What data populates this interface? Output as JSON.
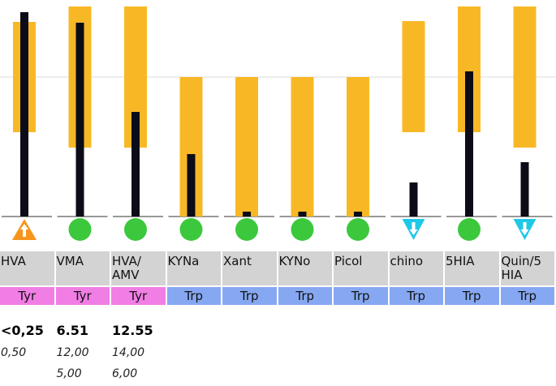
{
  "columns": [
    {
      "label": "HVA",
      "group": "Tyr",
      "value": "<0,25",
      "ref_high": "0,50"
    },
    {
      "label": "VMA",
      "group": "Tyr",
      "value": "6.51",
      "ref_high": "12,00",
      "ref_low": "5,00"
    },
    {
      "label": "HVA/\nAMV",
      "group": "Tyr",
      "value": "12.55",
      "ref_high": "14,00",
      "ref_low": "6,00"
    },
    {
      "label": "KYNa",
      "group": "Trp"
    },
    {
      "label": "Xant",
      "group": "Trp"
    },
    {
      "label": "KYNo",
      "group": "Trp"
    },
    {
      "label": "Picol",
      "group": "Trp"
    },
    {
      "label": "chino",
      "group": "Trp"
    },
    {
      "label": "5HIA",
      "group": "Trp"
    },
    {
      "label": "Quin/5\nHIA",
      "group": "Trp"
    }
  ]
}
